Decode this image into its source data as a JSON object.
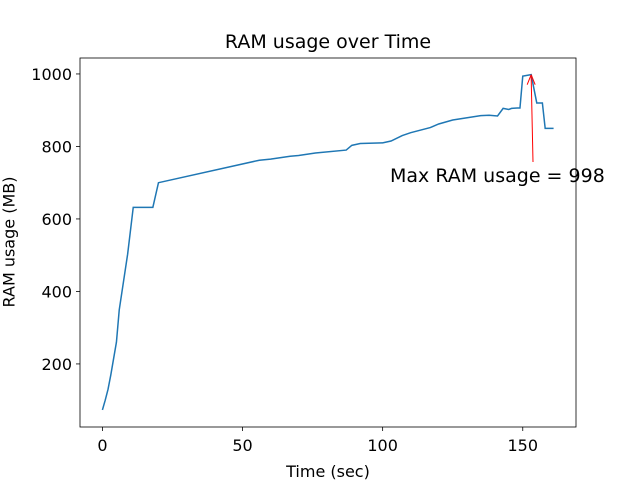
{
  "chart_data": {
    "type": "line",
    "title": "RAM usage over Time",
    "xlabel": "Time (sec)",
    "ylabel": "RAM usage (MB)",
    "x": [
      0,
      1,
      2,
      3,
      5,
      6,
      9,
      11,
      18,
      20,
      56,
      60,
      67,
      70,
      76,
      87,
      89,
      92,
      100,
      103,
      107,
      110,
      117,
      120,
      125,
      135,
      138,
      141,
      143,
      145,
      146,
      148,
      149,
      150,
      153,
      155,
      157,
      158,
      161
    ],
    "values": [
      73,
      100,
      130,
      170,
      260,
      349,
      503,
      632,
      632,
      700,
      762,
      765,
      773,
      775,
      782,
      790,
      803,
      808,
      810,
      815,
      830,
      838,
      852,
      862,
      873,
      885,
      886,
      884,
      905,
      902,
      905,
      906,
      906,
      994,
      998,
      920,
      920,
      850,
      850
    ],
    "color": "#1f77b4",
    "xlim": [
      -8,
      169
    ],
    "ylim": [
      26,
      1044
    ],
    "xticks": [
      0,
      50,
      100,
      150
    ],
    "yticks": [
      200,
      400,
      600,
      800,
      1000
    ],
    "annotation": {
      "text": "Max RAM usage = 998",
      "xy": [
        153,
        998
      ],
      "color": "red"
    }
  }
}
